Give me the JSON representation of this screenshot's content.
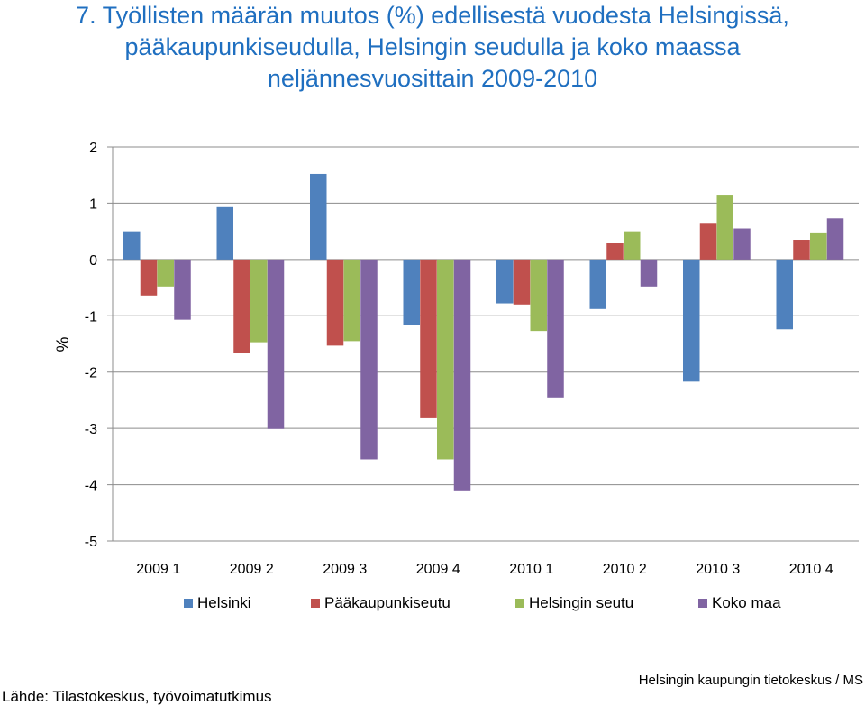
{
  "title_lines": [
    "7. Työllisten määrän muutos (%) edellisestä vuodesta Helsingissä,",
    "pääkaupunkiseudulla, Helsingin seudulla ja koko maassa",
    "neljännesvuosittain 2009-2010"
  ],
  "colors": {
    "title": "#1f6fc0",
    "Helsinki": "#4f81bd",
    "Pääkaupunkiseutu": "#c0504d",
    "Helsingin seutu": "#9bbb59",
    "Koko maa": "#8064a2"
  },
  "footer": {
    "source": "Lähde: Tilastokeskus, työvoimatutkimus",
    "publisher": "Helsingin kaupungin tietokeskus / MS"
  },
  "chart_data": {
    "type": "bar",
    "ylabel": "%",
    "xlabel": "",
    "ylim": [
      -5,
      2
    ],
    "yticks": [
      2,
      1,
      0,
      -1,
      -2,
      -3,
      -4,
      -5
    ],
    "grid": true,
    "legend_position": "bottom",
    "categories": [
      "2009 1",
      "2009 2",
      "2009 3",
      "2009 4",
      "2010 1",
      "2010 2",
      "2010 3",
      "2010 4"
    ],
    "series": [
      {
        "name": "Helsinki",
        "values": [
          0.5,
          0.93,
          1.52,
          -1.17,
          -0.78,
          -0.88,
          -2.17,
          -1.24
        ]
      },
      {
        "name": "Pääkaupunkiseutu",
        "values": [
          -0.64,
          -1.66,
          -1.53,
          -2.82,
          -0.8,
          0.3,
          0.65,
          0.35
        ]
      },
      {
        "name": "Helsingin seutu",
        "values": [
          -0.48,
          -1.47,
          -1.45,
          -3.55,
          -1.27,
          0.5,
          1.15,
          0.48
        ]
      },
      {
        "name": "Koko maa",
        "values": [
          -1.07,
          -3.01,
          -3.55,
          -4.1,
          -2.45,
          -0.48,
          0.55,
          0.73
        ]
      }
    ]
  }
}
